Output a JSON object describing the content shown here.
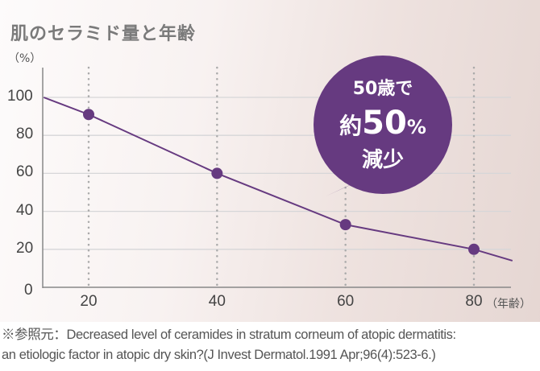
{
  "chart_data": {
    "type": "line",
    "title": "肌のセラミド量と年齢",
    "ylabel": "（%）",
    "xlabel": "（年齢）",
    "x": [
      20,
      40,
      60,
      80
    ],
    "series": [
      {
        "values": [
          91,
          60,
          33,
          20
        ]
      }
    ],
    "line_start": {
      "x": 13,
      "y": 100
    },
    "line_end": {
      "x": 86,
      "y": 14
    },
    "xticks": [
      "20",
      "40",
      "60",
      "80"
    ],
    "yticks": [
      "0",
      "20",
      "40",
      "60",
      "80",
      "100"
    ],
    "xlim": [
      13,
      86
    ],
    "ylim": [
      0,
      100
    ],
    "grid": {
      "horizontal": "solid",
      "vertical": "dotted"
    },
    "line_color": "#663a80",
    "annotation": {
      "line1": "50歳で",
      "line2a": "約",
      "line2b": "50",
      "line2c": "%",
      "line3": "減少",
      "color": "#663a80"
    }
  },
  "note": {
    "line1": "※参照元：Decreased level of ceramides in stratum corneum of atopic dermatitis:",
    "line2": "an etiologic factor in atopic dry skin?(J Invest Dermatol.1991 Apr;96(4):523-6.)"
  }
}
